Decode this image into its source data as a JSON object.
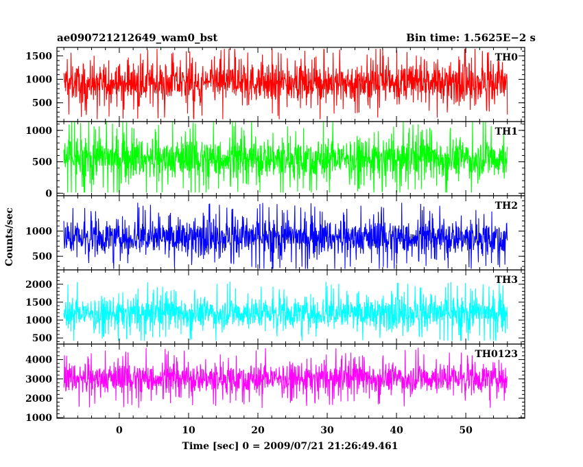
{
  "header": {
    "left_title": "ae090721212649_wam0_bst",
    "right_title": "Bin time: 1.5625E−2 s"
  },
  "chart_data": {
    "type": "line",
    "xlabel": "Time [sec] 0 = 2009/07/21 21:26:49.461",
    "ylabel": "Counts/sec",
    "xlim": [
      -9,
      58.5
    ],
    "x_range": [
      -8,
      56
    ],
    "x_ticks": [
      0,
      10,
      20,
      30,
      40,
      50
    ],
    "x_tick_labels": [
      "0",
      "10",
      "20",
      "30",
      "40",
      "50"
    ],
    "panels": [
      {
        "name": "TH0",
        "color": "#ff0000",
        "ylim": [
          100,
          1680
        ],
        "yticks": [
          500,
          1000,
          1500
        ],
        "ytick_labels": [
          "500",
          "1000",
          "1500"
        ],
        "mean": 930,
        "spread": 380,
        "min": 150,
        "max": 1650
      },
      {
        "name": "TH1",
        "color": "#00ff00",
        "ylim": [
          -40,
          1140
        ],
        "yticks": [
          0,
          500,
          1000
        ],
        "ytick_labels": [
          "0",
          "500",
          "1000"
        ],
        "mean": 560,
        "spread": 310,
        "min": 10,
        "max": 1140
      },
      {
        "name": "TH2",
        "color": "#0000ff",
        "ylim": [
          230,
          1700
        ],
        "yticks": [
          500,
          1000
        ],
        "ytick_labels": [
          "500",
          "1000"
        ],
        "mean": 880,
        "spread": 330,
        "min": 250,
        "max": 1650
      },
      {
        "name": "TH3",
        "color": "#00ffff",
        "ylim": [
          330,
          2400
        ],
        "yticks": [
          500,
          1000,
          1500,
          2000
        ],
        "ytick_labels": [
          "500",
          "1000",
          "1500",
          "2000"
        ],
        "mean": 1200,
        "spread": 420,
        "min": 420,
        "max": 2400
      },
      {
        "name": "TH0123",
        "color": "#ff00ff",
        "ylim": [
          970,
          4800
        ],
        "yticks": [
          1000,
          2000,
          3000,
          4000
        ],
        "ytick_labels": [
          "1000",
          "2000",
          "3000",
          "4000"
        ],
        "mean": 3050,
        "spread": 750,
        "min": 1030,
        "max": 4700
      }
    ]
  }
}
